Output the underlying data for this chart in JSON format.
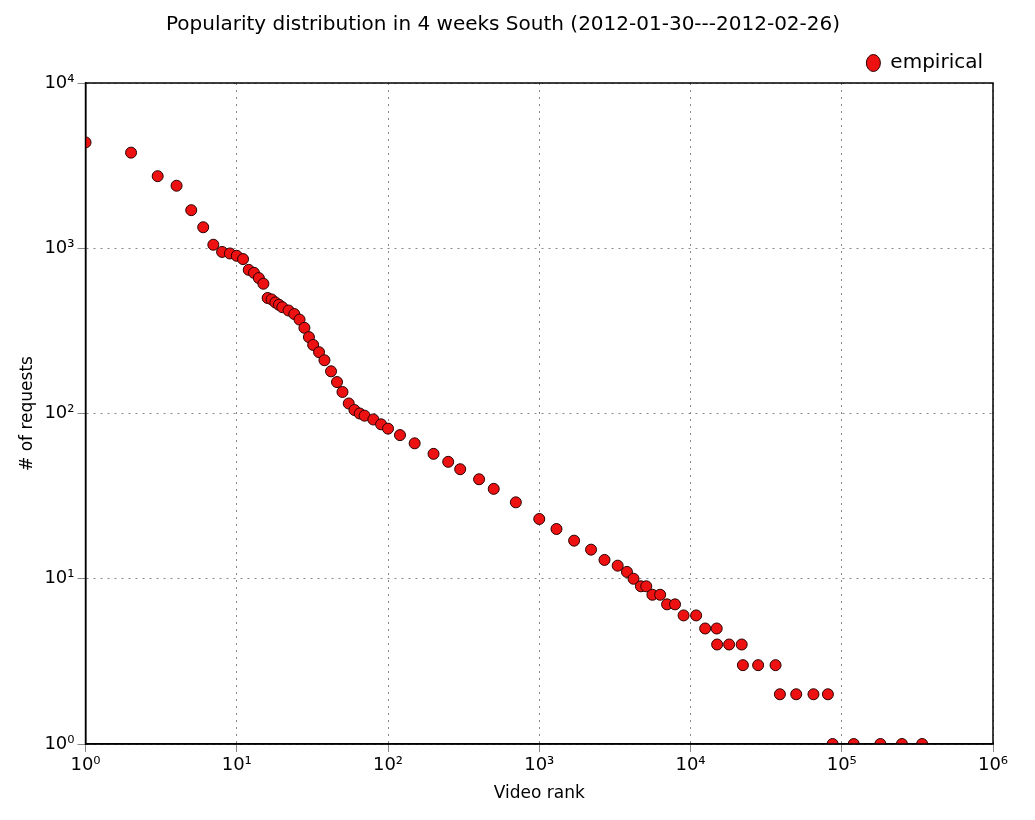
{
  "chart_data": {
    "type": "scatter",
    "title": "Popularity distribution in 4 weeks South (2012-01-30---2012-02-26)",
    "xlabel": "Video rank",
    "ylabel": "# of requests",
    "log": "xy",
    "grid": true,
    "legend": "top right",
    "marker": "circle",
    "xlim": [
      1,
      1000000
    ],
    "ylim": [
      1,
      10000
    ],
    "xticks": [
      {
        "value": 1,
        "label": "10⁰"
      },
      {
        "value": 10,
        "label": "10¹"
      },
      {
        "value": 100,
        "label": "10²"
      },
      {
        "value": 1000,
        "label": "10³"
      },
      {
        "value": 10000,
        "label": "10⁴"
      },
      {
        "value": 100000,
        "label": "10⁵"
      },
      {
        "value": 1000000,
        "label": "10⁶"
      }
    ],
    "yticks": [
      {
        "value": 1,
        "label": "10⁰"
      },
      {
        "value": 10,
        "label": "10¹"
      },
      {
        "value": 100,
        "label": "10²"
      },
      {
        "value": 1000,
        "label": "10³"
      },
      {
        "value": 10000,
        "label": "10⁴"
      }
    ],
    "series": [
      {
        "name": "empirical",
        "color": "#ee1111",
        "x": [
          1,
          2,
          3,
          4,
          5,
          6,
          7,
          8,
          9,
          10,
          11,
          12,
          13,
          14,
          15,
          16,
          17,
          18,
          19,
          20,
          22,
          24,
          26,
          28,
          30,
          32,
          35,
          38,
          42,
          46,
          50,
          55,
          60,
          65,
          70,
          80,
          90,
          100,
          120,
          150,
          200,
          250,
          300,
          400,
          500,
          700,
          1000,
          1300,
          1700,
          2200,
          2700,
          3300,
          3800,
          4200,
          4700,
          5100,
          5600,
          6300,
          7000,
          7900,
          9000,
          10900,
          12500,
          14900,
          15000,
          18000,
          21800,
          22200,
          28000,
          36500,
          39000,
          50000,
          65000,
          81000,
          87000,
          120000,
          180000,
          250000,
          340000
        ],
        "values": [
          4370,
          3790,
          2730,
          2390,
          1700,
          1340,
          1050,
          950,
          930,
          900,
          860,
          740,
          710,
          660,
          610,
          500,
          490,
          470,
          455,
          440,
          420,
          400,
          370,
          330,
          290,
          260,
          235,
          210,
          180,
          155,
          135,
          115,
          105,
          100,
          97,
          92,
          86,
          81,
          74,
          66,
          57,
          51,
          46,
          40,
          35,
          29,
          23,
          20,
          17,
          15,
          13,
          12,
          11,
          10,
          9,
          9,
          8,
          8,
          7,
          7,
          6,
          6,
          5,
          5,
          4,
          4,
          4,
          3,
          3,
          3,
          2,
          2,
          2,
          2,
          1,
          1,
          1,
          1,
          1
        ]
      }
    ]
  }
}
